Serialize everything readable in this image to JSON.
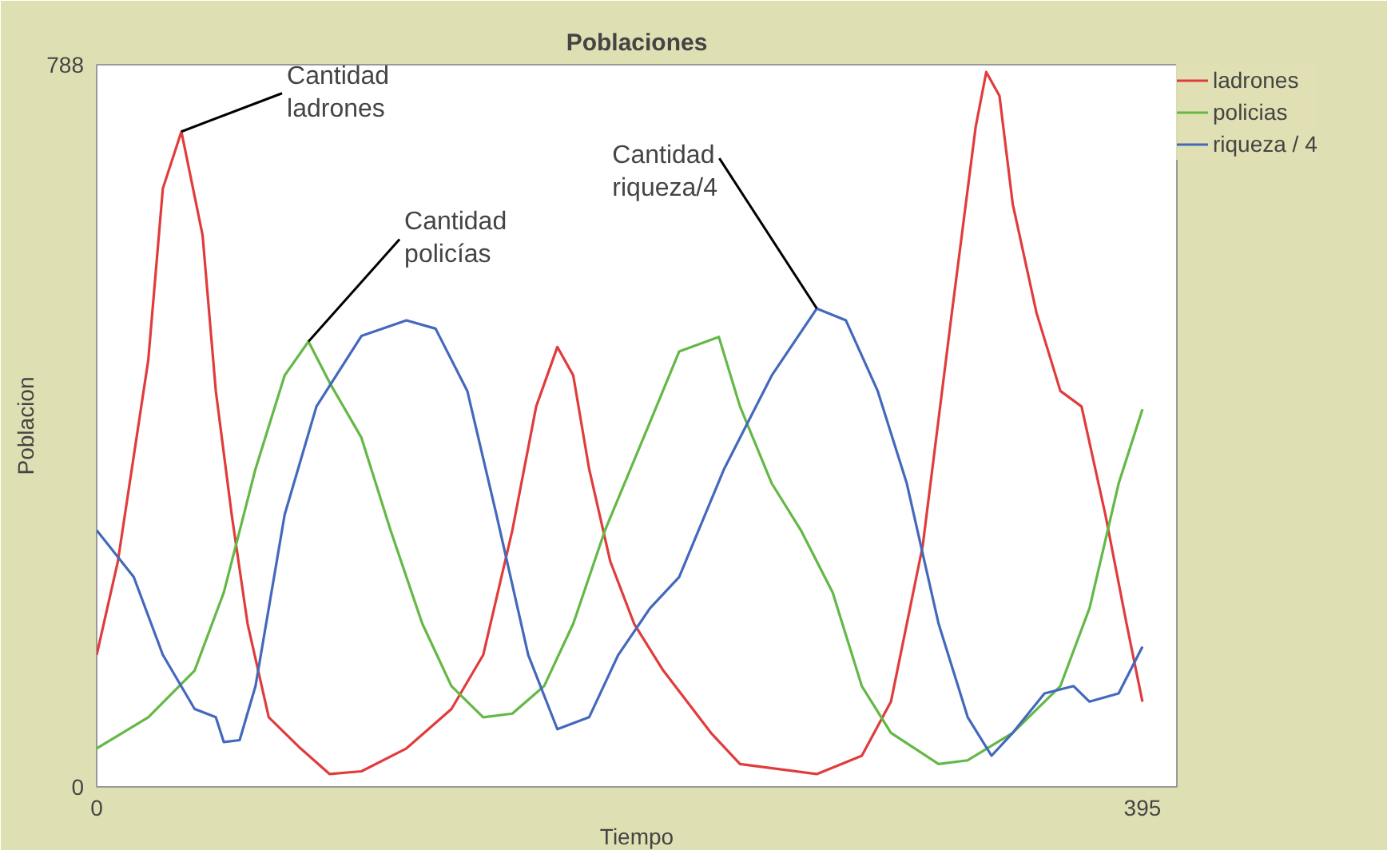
{
  "chart_data": {
    "type": "line",
    "title": "Poblaciones",
    "xlabel": "Tiempo",
    "ylabel": "Poblacion",
    "xlim": [
      0,
      408
    ],
    "xticks": [
      0,
      395
    ],
    "ylim": [
      0,
      788
    ],
    "yticks": [
      0,
      788
    ],
    "grid": false,
    "legend": "right",
    "marker": "none",
    "line_style": "solid",
    "series": [
      {
        "name": "ladrones",
        "color": "#e03c3c",
        "x": [
          0,
          8,
          19.5,
          25,
          32,
          40,
          45,
          51,
          57,
          65,
          77,
          88,
          100,
          117,
          134,
          146,
          157,
          166,
          174,
          180,
          186,
          194,
          203,
          214,
          232,
          243,
          272,
          289,
          300,
          312,
          323,
          332,
          336,
          341,
          346,
          355,
          364,
          372,
          381,
          389,
          395
        ],
        "values": [
          144,
          246,
          466,
          653,
          715,
          602,
          432,
          297,
          178,
          76,
          42,
          14,
          17,
          42,
          85,
          144,
          280,
          415,
          480,
          449,
          347,
          246,
          178,
          127,
          59,
          25,
          14,
          34,
          93,
          263,
          517,
          720,
          780,
          754,
          636,
          517,
          432,
          415,
          297,
          178,
          93
        ]
      },
      {
        "name": "policias",
        "color": "#64b846",
        "x": [
          0,
          19.5,
          37,
          48,
          60,
          71,
          80,
          88,
          100,
          111,
          123,
          134,
          146,
          157,
          169,
          180,
          192,
          209,
          220,
          235,
          243,
          255,
          266,
          278,
          289,
          300,
          318,
          329,
          346,
          364,
          375,
          386,
          395
        ],
        "values": [
          42,
          76,
          127,
          212,
          347,
          449,
          486,
          441,
          381,
          280,
          178,
          110,
          76,
          80,
          110,
          178,
          280,
          398,
          475,
          491,
          415,
          331,
          280,
          212,
          110,
          59,
          25,
          29,
          59,
          110,
          195,
          331,
          412
        ]
      },
      {
        "name": "riqueza / 4",
        "color": "#4468bc",
        "x": [
          0,
          14,
          25,
          37,
          45,
          48,
          54,
          60,
          71,
          83,
          100,
          117,
          128,
          140,
          151,
          163,
          174,
          186,
          197,
          209,
          220,
          237,
          255,
          272,
          283,
          295,
          306,
          318,
          329,
          338,
          346,
          358,
          369,
          375,
          386,
          395
        ],
        "values": [
          280,
          229,
          144,
          85,
          76,
          49,
          51,
          110,
          297,
          415,
          492,
          509,
          500,
          432,
          297,
          144,
          63,
          76,
          144,
          195,
          229,
          347,
          449,
          522,
          509,
          432,
          331,
          178,
          76,
          34,
          59,
          102,
          110,
          93,
          102,
          153
        ]
      }
    ],
    "annotations": [
      {
        "text": "Cantidad\nladrones",
        "x": 32,
        "y": 715
      },
      {
        "text": "Cantidad\npolicías",
        "x": 80,
        "y": 486
      },
      {
        "text": "Cantidad\nriqueza/4",
        "x": 272,
        "y": 522
      }
    ]
  }
}
